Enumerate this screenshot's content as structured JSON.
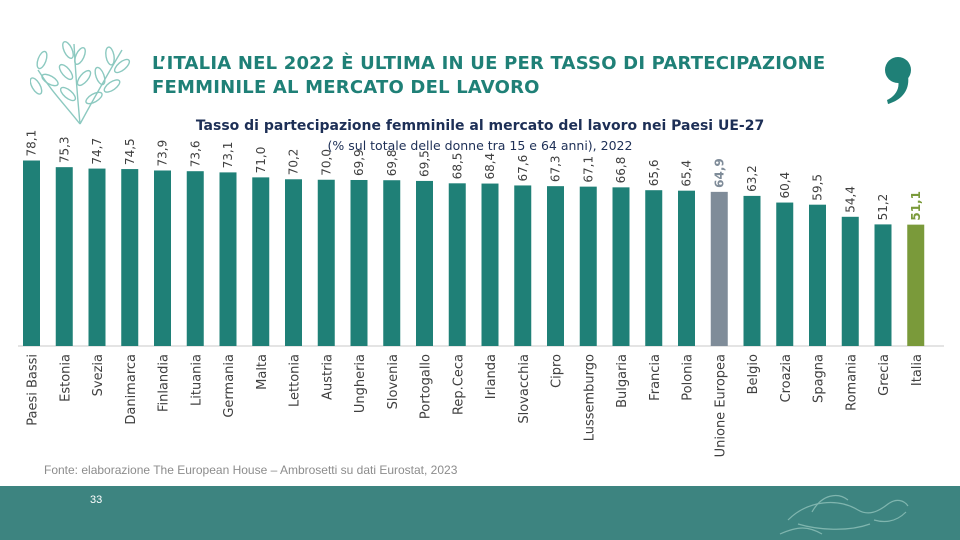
{
  "header": {
    "title_line1": "L’ITALIA NEL 2022 È ULTIMA IN UE PER TASSO DI PARTECIPAZIONE",
    "title_line2": "FEMMINILE AL MERCATO DEL LAVORO",
    "logo_icon": "olive-branch-icon",
    "brand_mark": "comma-icon",
    "brand_color": "#1f8077"
  },
  "chart_data": {
    "type": "bar",
    "title": "Tasso di partecipazione femminile al mercato del lavoro nei Paesi UE-27",
    "subtitle": "(% sul totale delle donne tra 15 e 64 anni), 2022",
    "categories": [
      "Paesi Bassi",
      "Estonia",
      "Svezia",
      "Danimarca",
      "Finlandia",
      "Lituania",
      "Germania",
      "Malta",
      "Lettonia",
      "Austria",
      "Ungheria",
      "Slovenia",
      "Portogallo",
      "Rep.Ceca",
      "Irlanda",
      "Slovacchia",
      "Cipro",
      "Lussemburgo",
      "Bulgaria",
      "Francia",
      "Polonia",
      "Unione Europea",
      "Belgio",
      "Croazia",
      "Spagna",
      "Romania",
      "Grecia",
      "Italia"
    ],
    "values": [
      78.1,
      75.3,
      74.7,
      74.5,
      73.9,
      73.6,
      73.1,
      71.0,
      70.2,
      70.0,
      69.9,
      69.8,
      69.5,
      68.5,
      68.4,
      67.6,
      67.3,
      67.1,
      66.8,
      65.6,
      65.4,
      64.9,
      63.2,
      60.4,
      59.5,
      54.4,
      51.2,
      51.1
    ],
    "value_labels": [
      "78,1",
      "75,3",
      "74,7",
      "74,5",
      "73,9",
      "73,6",
      "73,1",
      "71,0",
      "70,2",
      "70,0",
      "69,9",
      "69,8",
      "69,5",
      "68,5",
      "68,4",
      "67,6",
      "67,3",
      "67,1",
      "66,8",
      "65,6",
      "65,4",
      "64,9",
      "63,2",
      "60,4",
      "59,5",
      "54,4",
      "51,2",
      "51,1"
    ],
    "highlight": {
      "Unione Europea": "#7f8c99",
      "Italia": "#7a9a3a"
    },
    "default_color": "#1f8077",
    "bold_labels": [
      "Unione Europea",
      "Italia"
    ],
    "ylim": [
      0,
      80
    ],
    "grid": false,
    "legend": "none"
  },
  "source": "Fonte: elaborazione The European House – Ambrosetti su dati Eurostat, 2023",
  "footer": {
    "page_number": "33",
    "color": "#3d8480"
  }
}
